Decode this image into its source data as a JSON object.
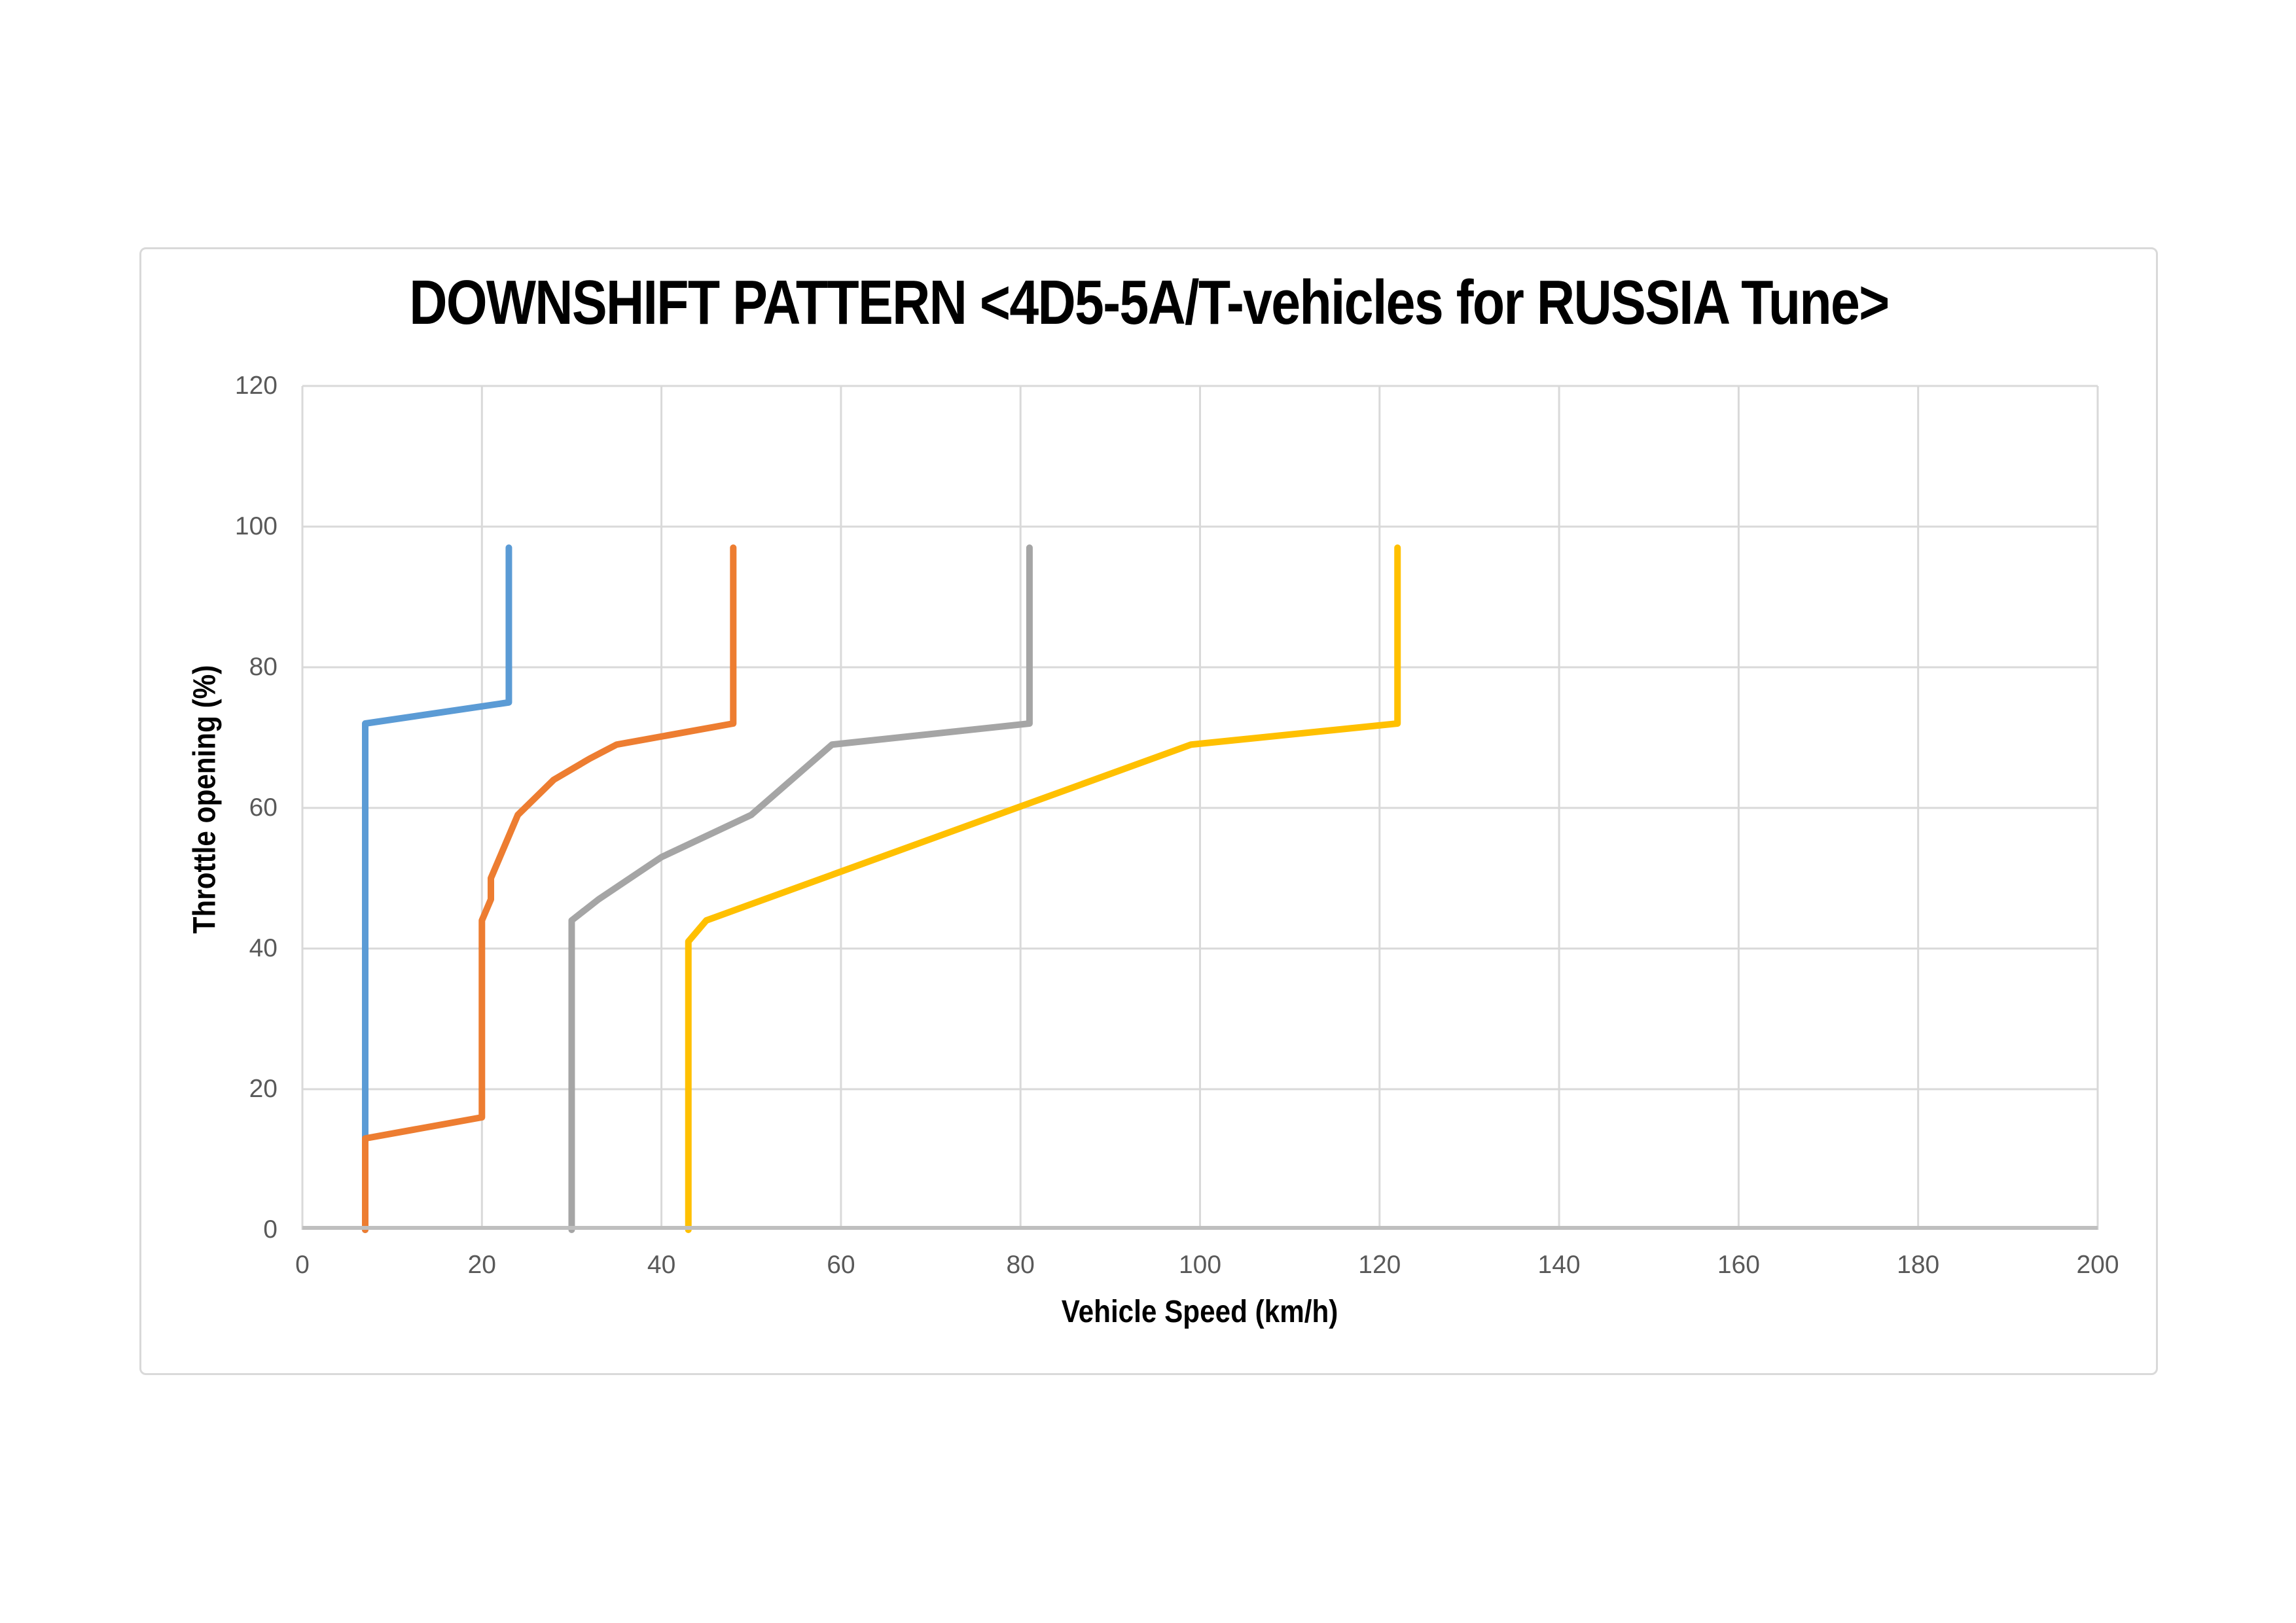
{
  "page": {
    "background_color": "#FFFFFF",
    "frame_border_color": "#D9D9D9"
  },
  "chart_data": {
    "type": "line",
    "title": "DOWNSHIFT PATTERN <4D5-5A/T-vehicles for RUSSIA Tune>",
    "xlabel": "Vehicle Speed (km/h)",
    "ylabel": "Throttle opening (%)",
    "xlim": [
      0,
      200
    ],
    "ylim": [
      0,
      120
    ],
    "x_ticks": [
      0,
      20,
      40,
      60,
      80,
      100,
      120,
      140,
      160,
      180,
      200
    ],
    "y_ticks": [
      0,
      20,
      40,
      60,
      80,
      100,
      120
    ],
    "grid": true,
    "legend": false,
    "gridline_color": "#D9D9D9",
    "axis_line_color": "#BFBFBF",
    "tick_label_color": "#595959",
    "series": [
      {
        "name": "series-1-blue",
        "color": "#5B9BD5",
        "points": [
          [
            7,
            0
          ],
          [
            7,
            72
          ],
          [
            23,
            75
          ],
          [
            23,
            97
          ]
        ]
      },
      {
        "name": "series-2-orange",
        "color": "#ED7D31",
        "points": [
          [
            7,
            0
          ],
          [
            7,
            13
          ],
          [
            20,
            16
          ],
          [
            20,
            44
          ],
          [
            21,
            47
          ],
          [
            21,
            50
          ],
          [
            24,
            59
          ],
          [
            28,
            64
          ],
          [
            32,
            67
          ],
          [
            35,
            69
          ],
          [
            48,
            72
          ],
          [
            48,
            97
          ]
        ]
      },
      {
        "name": "series-3-gray",
        "color": "#A5A5A5",
        "points": [
          [
            30,
            0
          ],
          [
            30,
            44
          ],
          [
            33,
            47
          ],
          [
            40,
            53
          ],
          [
            50,
            59
          ],
          [
            59,
            69
          ],
          [
            81,
            72
          ],
          [
            81,
            97
          ]
        ]
      },
      {
        "name": "series-4-yellow",
        "color": "#FFC000",
        "points": [
          [
            43,
            0
          ],
          [
            43,
            41
          ],
          [
            45,
            44
          ],
          [
            99,
            69
          ],
          [
            122,
            72
          ],
          [
            122,
            97
          ]
        ]
      }
    ]
  }
}
